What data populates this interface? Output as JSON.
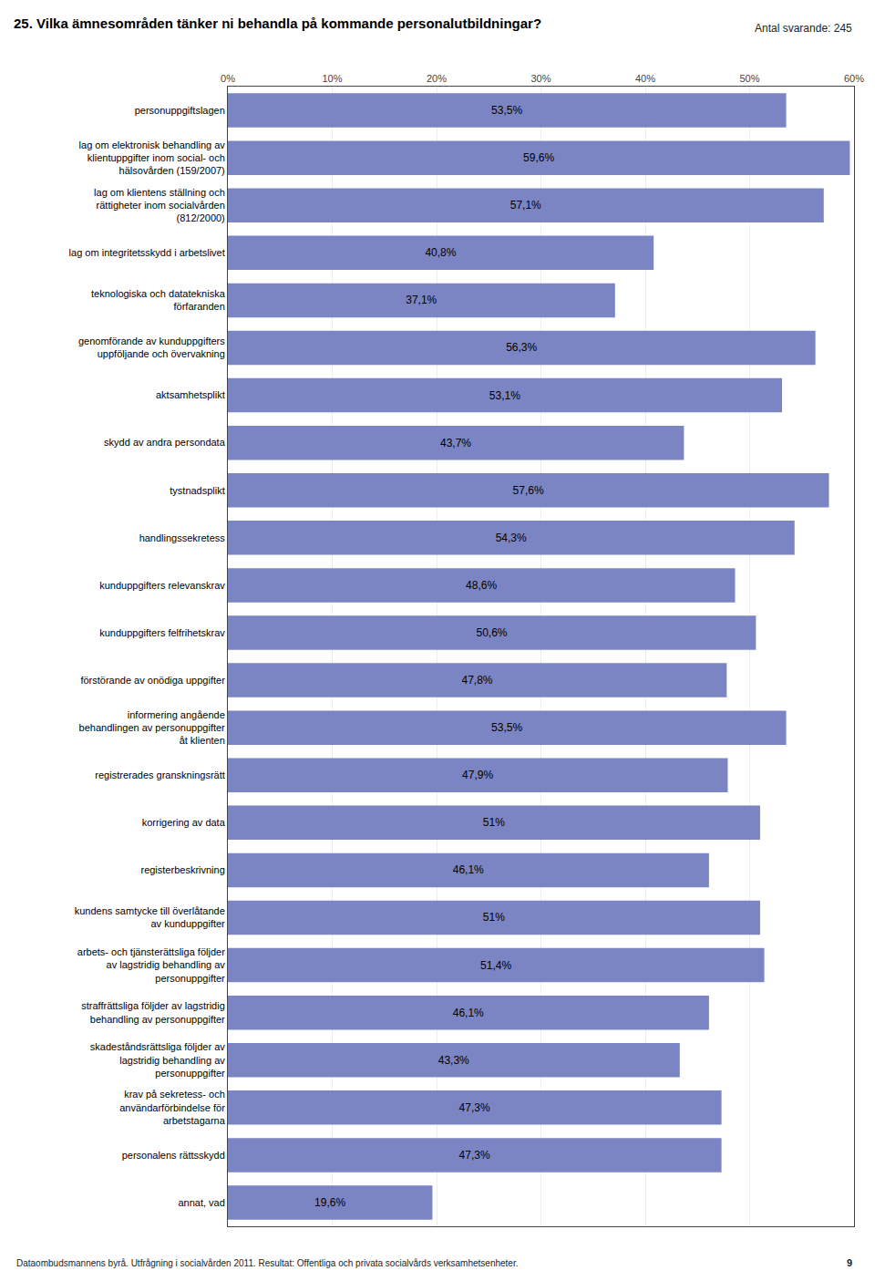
{
  "chart_data": {
    "type": "bar",
    "orientation": "horizontal",
    "title": "25. Vilka ämnesområden tänker ni behandla på kommande personalutbildningar?",
    "annotations": [
      "Antal svarande: 245",
      "Dataombudsmannens byrå. Utfrågning i socialvården 2011. Resultat: Offentliga och privata socialvårds verksamhetsenheter.",
      "9"
    ],
    "categories": [
      "personuppgiftslagen",
      "lag om elektronisk behandling av\nklientuppgifter inom social- och\nhälsovården (159/2007)",
      "lag om klientens ställning och\nrättigheter inom socialvården\n(812/2000)",
      "lag om integritetsskydd i arbetslivet",
      "teknologiska och datatekniska\nförfaranden",
      "genomförande av kunduppgifters\nuppföljande och övervakning",
      "aktsamhetsplikt",
      "skydd av andra persondata",
      "tystnadsplikt",
      "handlingssekretess",
      "kunduppgifters relevanskrav",
      "kunduppgifters felfrihetskrav",
      "förstörande av onödiga uppgifter",
      "informering angående\nbehandlingen av personuppgifter\nåt klienten",
      "registrerades granskningsrätt",
      "korrigering av data",
      "registerbeskrivning",
      "kundens samtycke till överlåtande\nav kunduppgifter",
      "arbets- och tjänsterättsliga följder\nav lagstridig behandling av\npersonuppgifter",
      "straffrättsliga följder av lagstridig\nbehandling av personuppgifter",
      "skadeståndsrättsliga följder av\nlagstridig behandling av\npersonuppgifter",
      "krav på sekretess- och\nanvändarförbindelse för\narbetstagarna",
      "personalens rättsskydd",
      "annat, vad"
    ],
    "values": [
      53.5,
      59.6,
      57.1,
      40.8,
      37.1,
      56.3,
      53.1,
      43.7,
      57.6,
      54.3,
      48.6,
      50.6,
      47.8,
      53.5,
      47.9,
      51.0,
      46.1,
      51.0,
      51.4,
      46.1,
      43.3,
      47.3,
      47.3,
      19.6
    ],
    "value_labels": [
      "53,5%",
      "59,6%",
      "57,1%",
      "40,8%",
      "37,1%",
      "56,3%",
      "53,1%",
      "43,7%",
      "57,6%",
      "54,3%",
      "48,6%",
      "50,6%",
      "47,8%",
      "53,5%",
      "47,9%",
      "51%",
      "46,1%",
      "51%",
      "51,4%",
      "46,1%",
      "43,3%",
      "47,3%",
      "47,3%",
      "19,6%"
    ],
    "data_labels": true,
    "color": "#7b85c4",
    "xlim": [
      0,
      60
    ],
    "xticks": [
      {
        "value": 0,
        "label": "0%"
      },
      {
        "value": 10,
        "label": "10%"
      },
      {
        "value": 20,
        "label": "20%"
      },
      {
        "value": 30,
        "label": "30%"
      },
      {
        "value": 40,
        "label": "40%"
      },
      {
        "value": 50,
        "label": "50%"
      },
      {
        "value": 60,
        "label": "60%"
      }
    ],
    "grid": true
  }
}
